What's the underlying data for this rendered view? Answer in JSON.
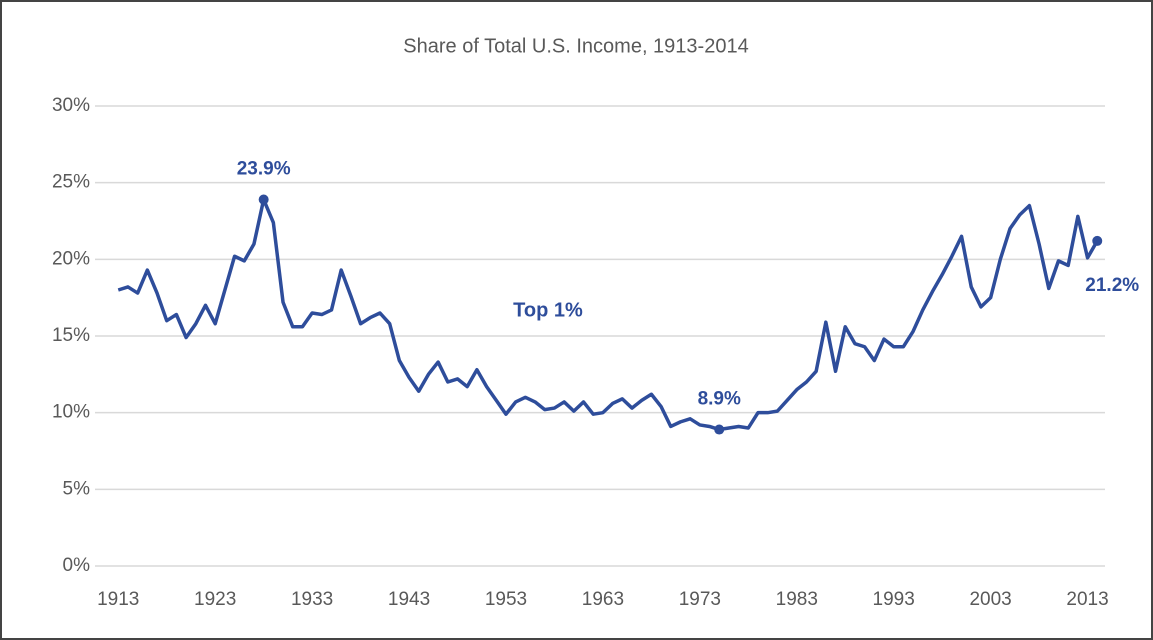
{
  "chart_data": {
    "type": "line",
    "title": "Share of Total U.S. Income, 1913-2014",
    "x": [
      1913,
      1914,
      1915,
      1916,
      1917,
      1918,
      1919,
      1920,
      1921,
      1922,
      1923,
      1924,
      1925,
      1926,
      1927,
      1928,
      1929,
      1930,
      1931,
      1932,
      1933,
      1934,
      1935,
      1936,
      1937,
      1938,
      1939,
      1940,
      1941,
      1942,
      1943,
      1944,
      1945,
      1946,
      1947,
      1948,
      1949,
      1950,
      1951,
      1952,
      1953,
      1954,
      1955,
      1956,
      1957,
      1958,
      1959,
      1960,
      1961,
      1962,
      1963,
      1964,
      1965,
      1966,
      1967,
      1968,
      1969,
      1970,
      1971,
      1972,
      1973,
      1974,
      1975,
      1976,
      1977,
      1978,
      1979,
      1980,
      1981,
      1982,
      1983,
      1984,
      1985,
      1986,
      1987,
      1988,
      1989,
      1990,
      1991,
      1992,
      1993,
      1994,
      1995,
      1996,
      1997,
      1998,
      1999,
      2000,
      2001,
      2002,
      2003,
      2004,
      2005,
      2006,
      2007,
      2008,
      2009,
      2010,
      2011,
      2012,
      2013,
      2014
    ],
    "series": [
      {
        "name": "Top 1%",
        "color": "#2e4d9b",
        "values": [
          18.0,
          18.2,
          17.8,
          19.3,
          17.8,
          16.0,
          16.4,
          14.9,
          15.8,
          17.0,
          15.8,
          18.0,
          20.2,
          19.9,
          21.0,
          23.9,
          22.4,
          17.2,
          15.6,
          15.6,
          16.5,
          16.4,
          16.7,
          19.3,
          17.6,
          15.8,
          16.2,
          16.5,
          15.8,
          13.4,
          12.3,
          11.4,
          12.5,
          13.3,
          12.0,
          12.2,
          11.7,
          12.8,
          11.7,
          10.8,
          9.9,
          10.7,
          11.0,
          10.7,
          10.2,
          10.3,
          10.7,
          10.1,
          10.7,
          9.9,
          10.0,
          10.6,
          10.9,
          10.3,
          10.8,
          11.2,
          10.4,
          9.1,
          9.4,
          9.6,
          9.2,
          9.1,
          8.9,
          9.0,
          9.1,
          9.0,
          10.0,
          10.0,
          10.1,
          10.8,
          11.5,
          12.0,
          12.7,
          15.9,
          12.7,
          15.6,
          14.5,
          14.3,
          13.4,
          14.8,
          14.3,
          14.3,
          15.3,
          16.7,
          17.9,
          19.0,
          20.2,
          21.5,
          18.2,
          16.9,
          17.5,
          20.0,
          22.0,
          22.9,
          23.5,
          21.0,
          18.1,
          19.9,
          19.6,
          22.8,
          20.1,
          21.2
        ],
        "value_labels": [
          null,
          null,
          null,
          null,
          null,
          null,
          null,
          null,
          null,
          null,
          null,
          null,
          null,
          null,
          null,
          "23.9%",
          null,
          null,
          null,
          null,
          null,
          null,
          null,
          null,
          null,
          null,
          null,
          null,
          null,
          null,
          null,
          null,
          null,
          null,
          null,
          null,
          null,
          null,
          null,
          null,
          null,
          null,
          null,
          null,
          null,
          null,
          null,
          null,
          null,
          null,
          null,
          null,
          null,
          null,
          null,
          null,
          null,
          null,
          null,
          null,
          null,
          null,
          "8.9%",
          null,
          null,
          null,
          null,
          null,
          null,
          null,
          null,
          null,
          null,
          null,
          null,
          null,
          null,
          null,
          null,
          null,
          null,
          null,
          null,
          null,
          null,
          null,
          null,
          null,
          null,
          null,
          null,
          null,
          null,
          null,
          null,
          null,
          null,
          null,
          null,
          null,
          null,
          "21.2%"
        ]
      }
    ],
    "xlim": [
      1910.6,
      2014.8
    ],
    "xticks": [
      1913,
      1923,
      1933,
      1943,
      1953,
      1963,
      1973,
      1983,
      1993,
      2003,
      2013
    ],
    "ylim": [
      0,
      30
    ],
    "yticks": [
      {
        "value": 0,
        "label": "0%"
      },
      {
        "value": 5,
        "label": "5%"
      },
      {
        "value": 10,
        "label": "10%"
      },
      {
        "value": 15,
        "label": "15%"
      },
      {
        "value": 20,
        "label": "20%"
      },
      {
        "value": 25,
        "label": "25%"
      },
      {
        "value": 30,
        "label": "30%"
      }
    ],
    "grid": true
  }
}
